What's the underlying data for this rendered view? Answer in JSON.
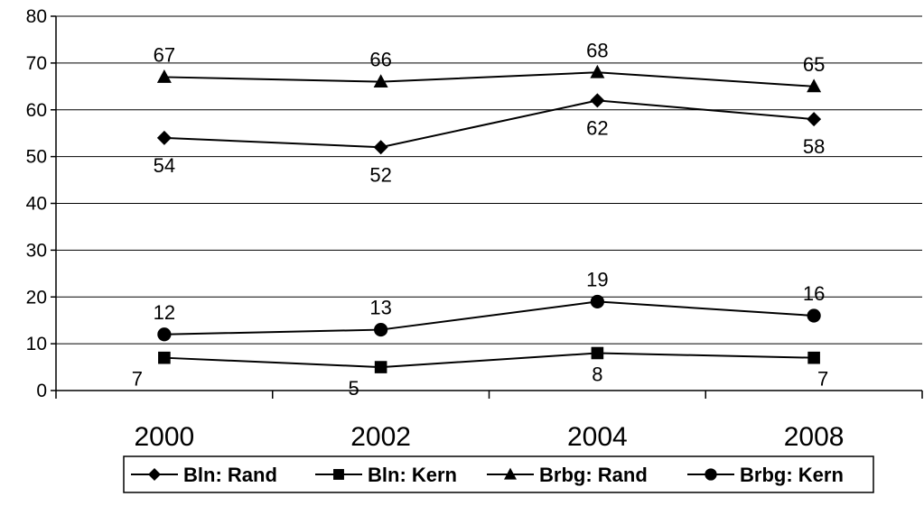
{
  "chart_data": {
    "type": "line",
    "categories": [
      "2000",
      "2002",
      "2004",
      "2008"
    ],
    "ylim": [
      0,
      80
    ],
    "yticks": [
      0,
      10,
      20,
      30,
      40,
      50,
      60,
      70,
      80
    ],
    "grid": true,
    "legend_position": "bottom",
    "series": [
      {
        "name": "Bln: Rand",
        "marker": "diamond",
        "values": [
          54,
          52,
          62,
          58
        ],
        "label_position": "below"
      },
      {
        "name": "Bln: Kern",
        "marker": "square",
        "values": [
          7,
          5,
          8,
          7
        ],
        "label_position": "below"
      },
      {
        "name": "Brbg: Rand",
        "marker": "triangle",
        "values": [
          67,
          66,
          68,
          65
        ],
        "label_position": "above"
      },
      {
        "name": "Brbg: Kern",
        "marker": "circle",
        "values": [
          12,
          13,
          19,
          16
        ],
        "label_position": "above"
      }
    ],
    "line_color": "#000000"
  }
}
